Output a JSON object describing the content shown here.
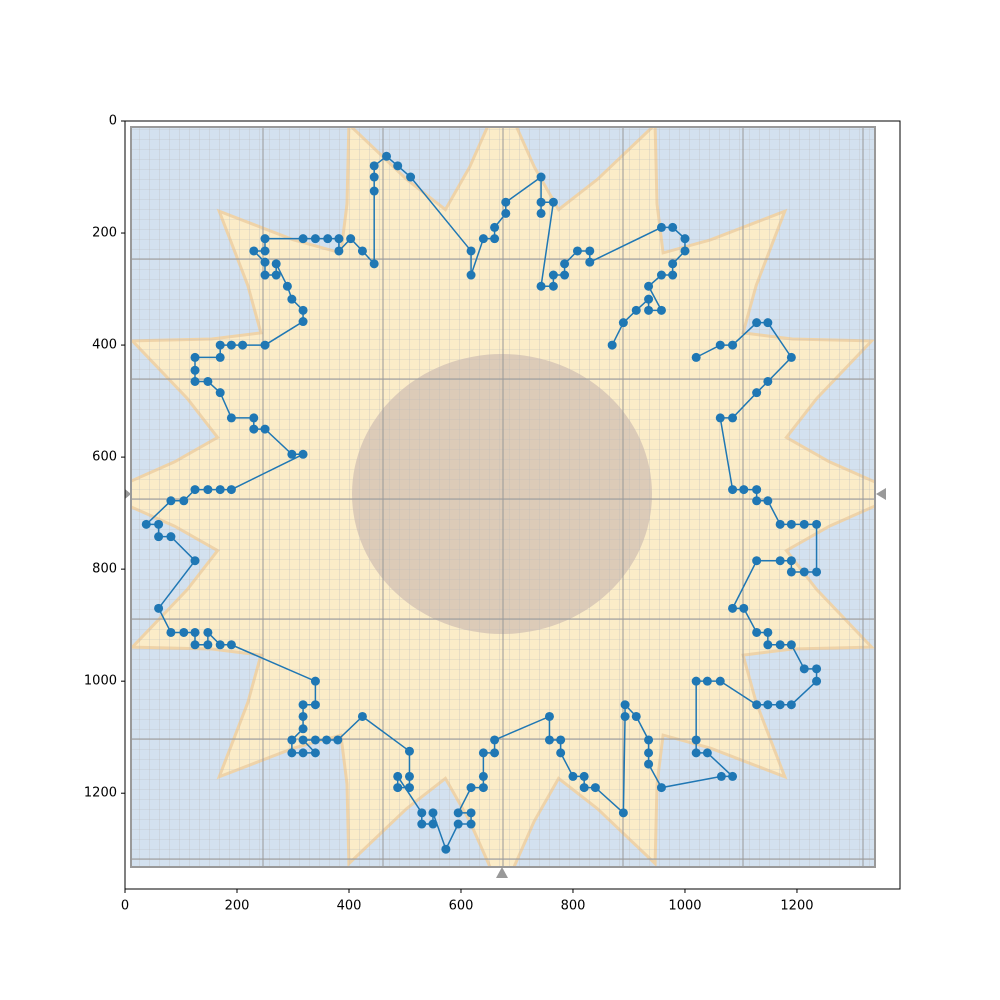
{
  "chart_data": {
    "type": "line",
    "x": [
      870,
      890,
      913,
      935,
      935,
      958,
      935,
      958,
      978,
      978,
      1000,
      1000,
      978,
      958,
      830,
      830,
      808,
      785,
      785,
      765,
      765,
      743,
      765,
      743,
      743,
      743,
      680,
      680,
      660,
      660,
      640,
      618,
      618,
      510,
      487,
      467,
      445,
      445,
      445,
      445,
      424,
      403,
      382,
      382,
      362,
      340,
      318,
      250,
      250,
      230,
      250,
      250,
      270,
      270,
      290,
      298,
      318,
      318,
      250,
      210,
      190,
      170,
      170,
      125,
      125,
      125,
      148,
      170,
      190,
      230,
      230,
      250,
      298,
      318,
      190,
      170,
      148,
      125,
      105,
      82,
      38,
      60,
      60,
      82,
      125,
      60,
      82,
      105,
      125,
      125,
      148,
      148,
      170,
      190,
      340,
      340,
      318,
      318,
      318,
      298,
      298,
      318,
      340,
      318,
      340,
      360,
      380,
      424,
      508,
      508,
      508,
      487,
      487,
      530,
      530,
      550,
      550,
      573,
      595,
      618,
      618,
      595,
      618,
      640,
      640,
      640,
      660,
      660,
      758,
      758,
      778,
      778,
      800,
      820,
      820,
      840,
      890,
      893,
      893,
      913,
      935,
      935,
      935,
      958,
      1065,
      1085,
      1040,
      1020,
      1020,
      1020,
      1040,
      1063,
      1128,
      1148,
      1170,
      1190,
      1235,
      1235,
      1213,
      1190,
      1170,
      1148,
      1148,
      1128,
      1105,
      1085,
      1128,
      1170,
      1190,
      1190,
      1213,
      1235,
      1235,
      1213,
      1190,
      1170,
      1148,
      1128,
      1128,
      1105,
      1085,
      1063,
      1085,
      1128,
      1148,
      1190,
      1148,
      1128,
      1085,
      1063,
      1020
    ],
    "series": [
      {
        "color": "#1f77b4",
        "values": [
          400,
          360,
          338,
          318,
          338,
          338,
          295,
          275,
          275,
          255,
          232,
          210,
          190,
          190,
          252,
          232,
          232,
          255,
          275,
          275,
          295,
          295,
          145,
          145,
          165,
          100,
          145,
          165,
          190,
          210,
          210,
          275,
          232,
          100,
          80,
          63,
          80,
          100,
          125,
          255,
          232,
          210,
          232,
          210,
          210,
          210,
          210,
          210,
          232,
          232,
          252,
          275,
          275,
          255,
          295,
          318,
          338,
          358,
          400,
          400,
          400,
          400,
          422,
          422,
          445,
          465,
          465,
          485,
          530,
          530,
          550,
          550,
          595,
          595,
          658,
          658,
          658,
          658,
          678,
          678,
          720,
          720,
          742,
          742,
          785,
          870,
          913,
          913,
          913,
          935,
          935,
          913,
          935,
          935,
          1000,
          1042,
          1042,
          1063,
          1085,
          1105,
          1128,
          1128,
          1128,
          1105,
          1105,
          1105,
          1105,
          1063,
          1125,
          1170,
          1190,
          1190,
          1170,
          1235,
          1255,
          1255,
          1235,
          1300,
          1255,
          1255,
          1235,
          1235,
          1190,
          1190,
          1170,
          1128,
          1128,
          1105,
          1063,
          1105,
          1105,
          1128,
          1170,
          1170,
          1190,
          1190,
          1235,
          1063,
          1042,
          1063,
          1105,
          1128,
          1148,
          1190,
          1170,
          1170,
          1128,
          1128,
          1105,
          1000,
          1000,
          1000,
          1042,
          1042,
          1042,
          1042,
          1000,
          978,
          978,
          935,
          935,
          935,
          913,
          913,
          870,
          870,
          785,
          785,
          785,
          805,
          805,
          805,
          720,
          720,
          720,
          720,
          678,
          678,
          658,
          658,
          658,
          530,
          530,
          485,
          465,
          422,
          360,
          360,
          400,
          400,
          422
        ]
      }
    ],
    "xlim": [
      0,
      1384
    ],
    "ylim": [
      1371,
      0
    ],
    "xticks": [
      0,
      200,
      400,
      600,
      800,
      1000,
      1200
    ],
    "yticks": [
      0,
      200,
      400,
      600,
      800,
      1000,
      1200
    ],
    "markers": true
  }
}
